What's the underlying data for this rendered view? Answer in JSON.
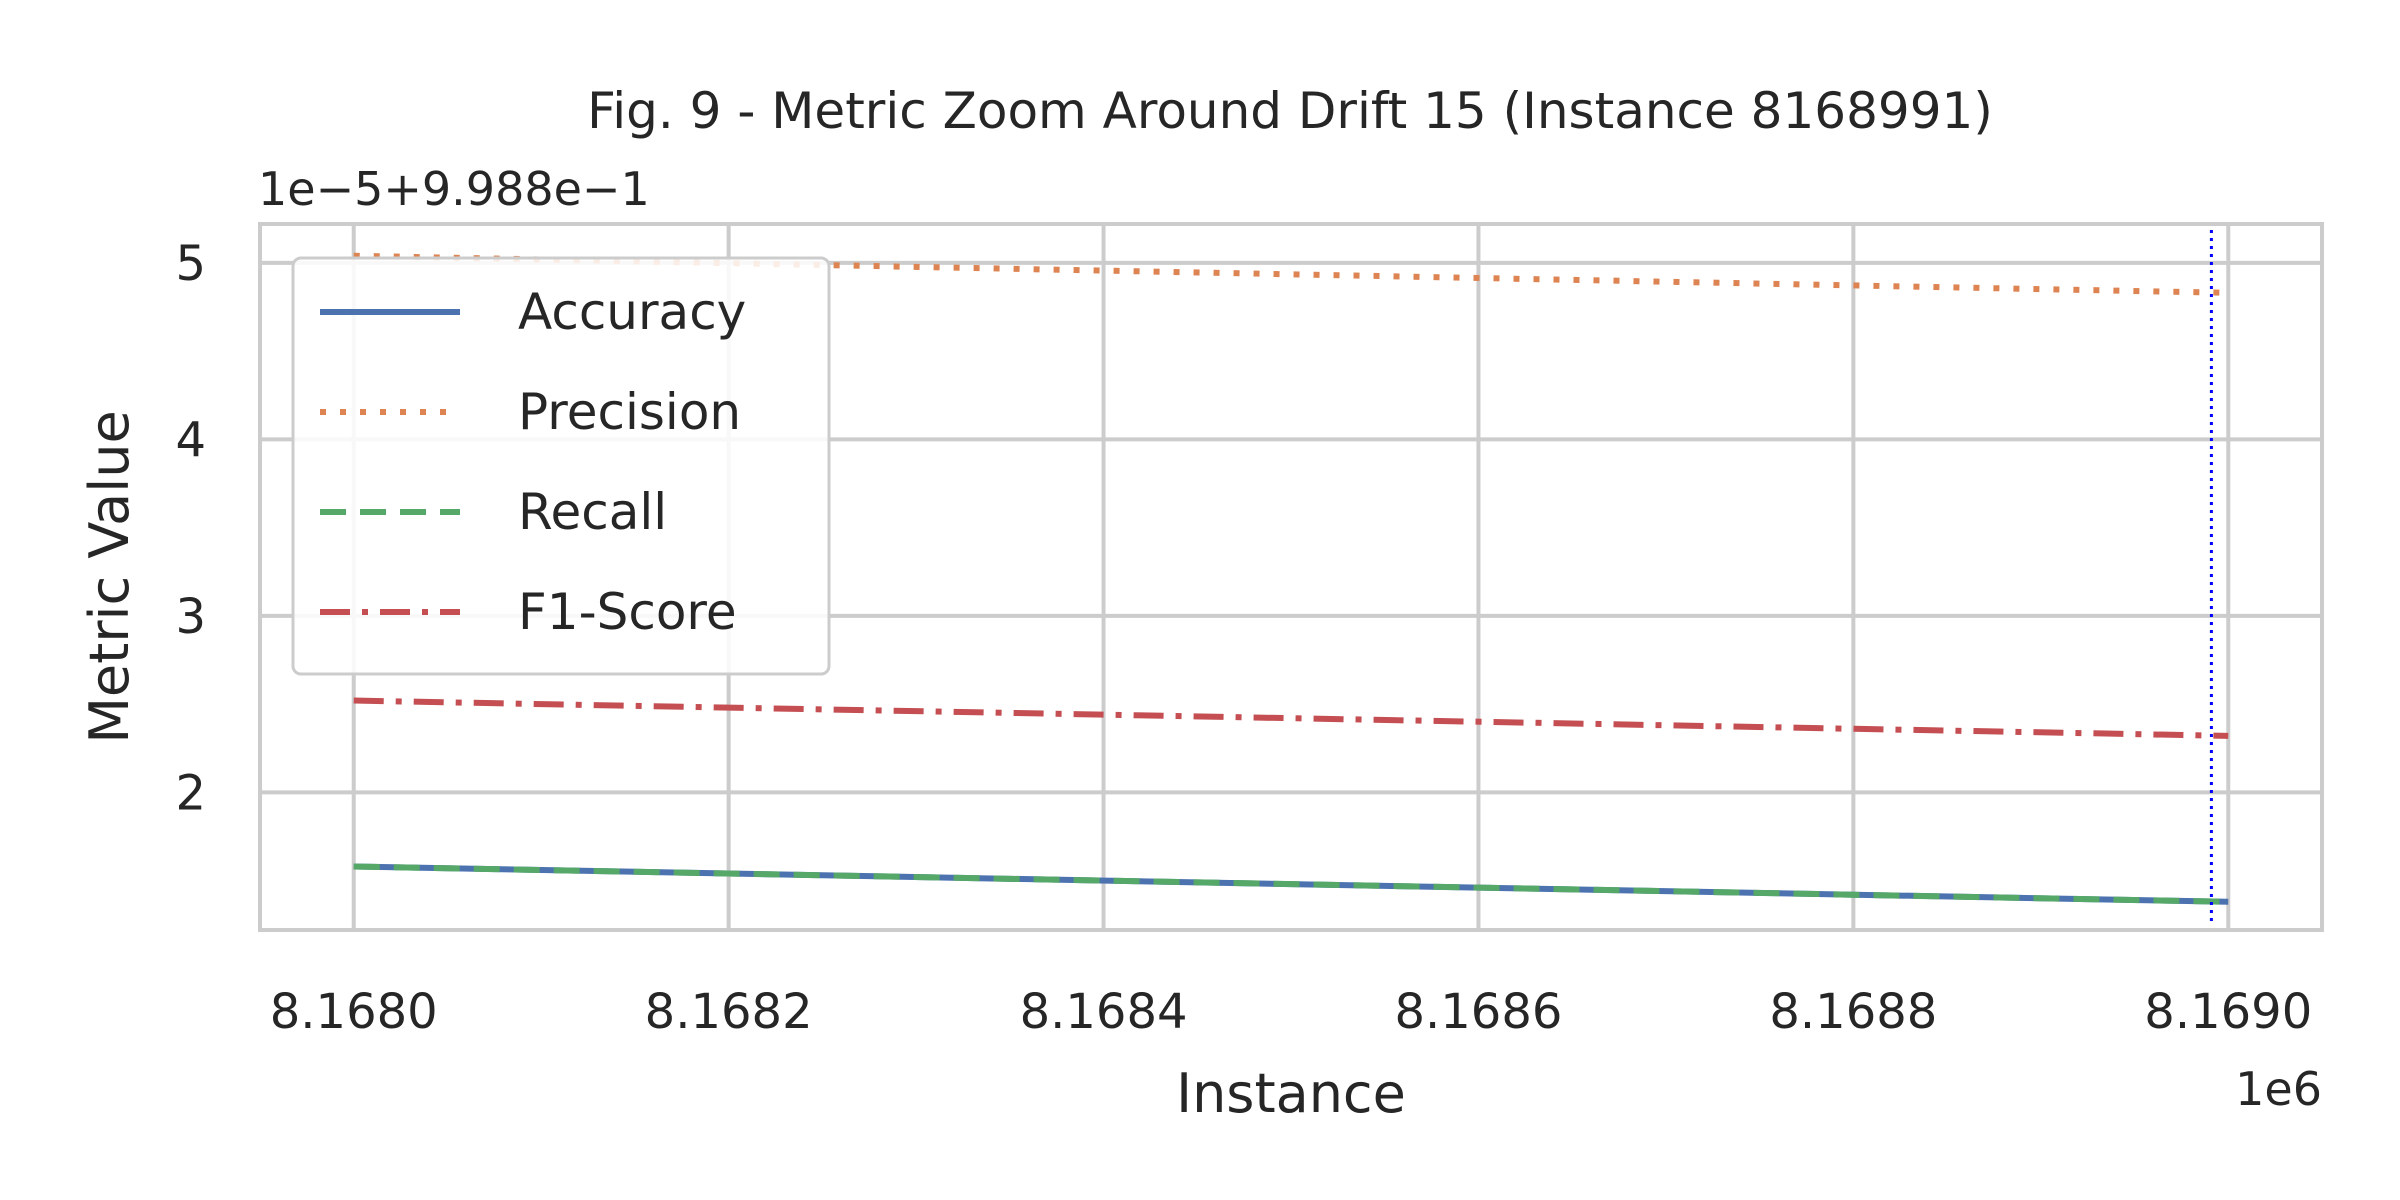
{
  "chart_data": {
    "type": "line",
    "title": "Fig. 9 - Metric Zoom Around Drift 15 (Instance 8168991)",
    "xlabel": "Instance",
    "ylabel": "Metric Value",
    "x_offset_label": "1e6",
    "y_offset_label": "1e−5+9.988e−1",
    "x": [
      8168000,
      8169000
    ],
    "xlim": [
      8167950,
      8169050
    ],
    "ylim": [
      1.22,
      5.22
    ],
    "x_ticks": [
      8168000,
      8168200,
      8168400,
      8168600,
      8168800,
      8169000
    ],
    "x_tick_labels": [
      "8.1680",
      "8.1682",
      "8.1684",
      "8.1686",
      "8.1688",
      "8.1690"
    ],
    "y_ticks": [
      2,
      3,
      4,
      5
    ],
    "y_tick_labels": [
      "2",
      "3",
      "4",
      "5"
    ],
    "grid": true,
    "legend_position": "top-left",
    "series": [
      {
        "name": "Accuracy",
        "values": [
          1.58,
          1.38
        ],
        "color": "#4c72b0",
        "dash": "solid"
      },
      {
        "name": "Precision",
        "values": [
          5.04,
          4.83
        ],
        "color": "#dd8452",
        "dash": "dotted"
      },
      {
        "name": "Recall",
        "values": [
          1.58,
          1.38
        ],
        "color": "#55a868",
        "dash": "dashed"
      },
      {
        "name": "F1-Score",
        "values": [
          2.52,
          2.32
        ],
        "color": "#c44e52",
        "dash": "dashdot"
      }
    ],
    "annotations": [
      {
        "type": "vertical-line",
        "x": 8168991,
        "color": "#0000ff",
        "style": "dotted"
      }
    ]
  }
}
